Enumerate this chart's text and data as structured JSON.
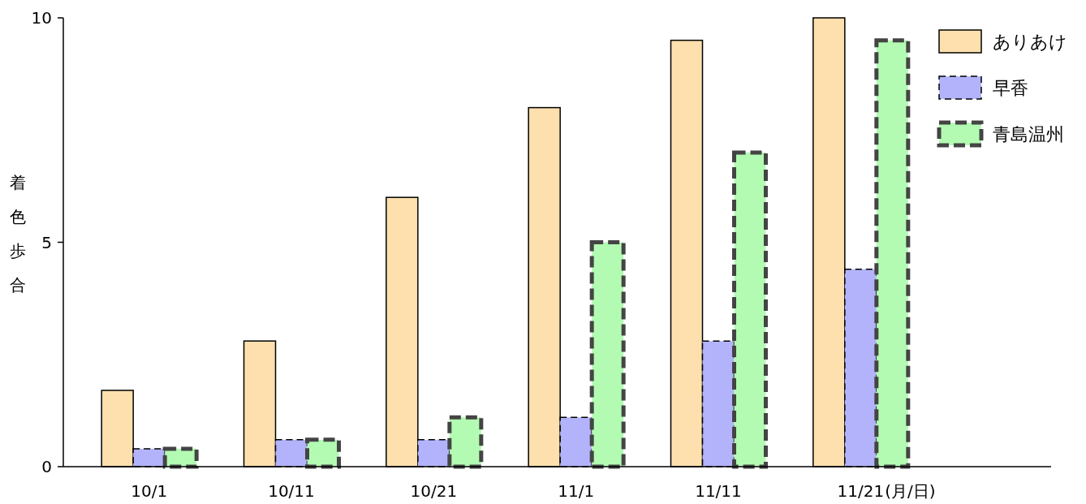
{
  "chart_data": {
    "type": "bar",
    "ylabel": "着色歩合",
    "xlabel": "(月/日)",
    "categories": [
      "10/1",
      "10/11",
      "10/21",
      "11/1",
      "11/11",
      "11/21"
    ],
    "series": [
      {
        "name": "ありあけ",
        "color": "#fde0ad",
        "values": [
          1.7,
          2.8,
          6,
          8,
          9.5,
          10
        ]
      },
      {
        "name": "早香",
        "color": "#b3b3fb",
        "values": [
          0.4,
          0.6,
          0.6,
          1.1,
          2.8,
          4.4
        ]
      },
      {
        "name": "青島温州",
        "color": "#b3fbb3",
        "values": [
          0.4,
          0.6,
          1.1,
          5,
          7,
          9.5
        ]
      }
    ],
    "ylim": [
      0,
      10
    ],
    "yticks": [
      0,
      5,
      10
    ],
    "grid": false,
    "legend": "top right"
  }
}
